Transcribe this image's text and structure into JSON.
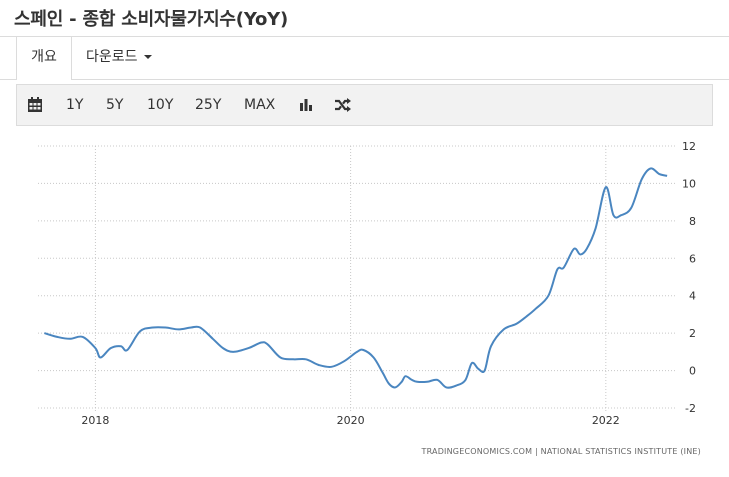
{
  "header": {
    "title": "스페인 - 종합 소비자물가지수(YoY)"
  },
  "tabs": [
    {
      "label": "개요"
    },
    {
      "label": "다운로드"
    }
  ],
  "toolbar": {
    "icons": [
      "calendar-icon",
      "bar-chart-icon",
      "shuffle-icon"
    ],
    "ranges": [
      "1Y",
      "5Y",
      "10Y",
      "25Y",
      "MAX"
    ]
  },
  "colors": {
    "line": "#4a86c0",
    "grid": "#c8c8c8",
    "toolbar_bg": "#f2f2f2"
  },
  "chart_data": {
    "type": "line",
    "title": "",
    "xlabel": "",
    "ylabel": "",
    "ylim": [
      -2,
      12
    ],
    "yticks": [
      -2,
      0,
      2,
      4,
      6,
      8,
      10,
      12
    ],
    "xticks": [
      "2018",
      "2020",
      "2022"
    ],
    "grid": true,
    "series": [
      {
        "values": [
          [
            2017.6,
            2.0
          ],
          [
            2017.7,
            1.8
          ],
          [
            2017.8,
            1.7
          ],
          [
            2017.9,
            1.8
          ],
          [
            2018.0,
            1.2
          ],
          [
            2018.04,
            0.7
          ],
          [
            2018.12,
            1.2
          ],
          [
            2018.2,
            1.3
          ],
          [
            2018.25,
            1.1
          ],
          [
            2018.35,
            2.1
          ],
          [
            2018.45,
            2.3
          ],
          [
            2018.55,
            2.3
          ],
          [
            2018.65,
            2.2
          ],
          [
            2018.75,
            2.3
          ],
          [
            2018.82,
            2.3
          ],
          [
            2018.92,
            1.7
          ],
          [
            2019.0,
            1.2
          ],
          [
            2019.08,
            1.0
          ],
          [
            2019.2,
            1.2
          ],
          [
            2019.3,
            1.5
          ],
          [
            2019.35,
            1.4
          ],
          [
            2019.45,
            0.7
          ],
          [
            2019.55,
            0.6
          ],
          [
            2019.65,
            0.6
          ],
          [
            2019.75,
            0.3
          ],
          [
            2019.85,
            0.2
          ],
          [
            2019.95,
            0.5
          ],
          [
            2020.05,
            1.0
          ],
          [
            2020.1,
            1.1
          ],
          [
            2020.18,
            0.7
          ],
          [
            2020.25,
            -0.1
          ],
          [
            2020.3,
            -0.7
          ],
          [
            2020.35,
            -0.9
          ],
          [
            2020.4,
            -0.6
          ],
          [
            2020.43,
            -0.3
          ],
          [
            2020.48,
            -0.5
          ],
          [
            2020.52,
            -0.6
          ],
          [
            2020.6,
            -0.6
          ],
          [
            2020.68,
            -0.5
          ],
          [
            2020.75,
            -0.9
          ],
          [
            2020.83,
            -0.8
          ],
          [
            2020.9,
            -0.5
          ],
          [
            2020.95,
            0.4
          ],
          [
            2021.0,
            0.1
          ],
          [
            2021.05,
            0.0
          ],
          [
            2021.1,
            1.3
          ],
          [
            2021.2,
            2.2
          ],
          [
            2021.3,
            2.5
          ],
          [
            2021.38,
            2.9
          ],
          [
            2021.45,
            3.3
          ],
          [
            2021.55,
            4.0
          ],
          [
            2021.62,
            5.4
          ],
          [
            2021.67,
            5.5
          ],
          [
            2021.75,
            6.5
          ],
          [
            2021.8,
            6.2
          ],
          [
            2021.85,
            6.5
          ],
          [
            2021.92,
            7.6
          ],
          [
            2022.0,
            9.8
          ],
          [
            2022.06,
            8.3
          ],
          [
            2022.12,
            8.3
          ],
          [
            2022.2,
            8.7
          ],
          [
            2022.28,
            10.2
          ],
          [
            2022.35,
            10.8
          ],
          [
            2022.42,
            10.5
          ],
          [
            2022.48,
            10.4
          ]
        ]
      }
    ],
    "source": "TRADINGECONOMICS.COM  |  NATIONAL STATISTICS INSTITUTE (INE)"
  }
}
